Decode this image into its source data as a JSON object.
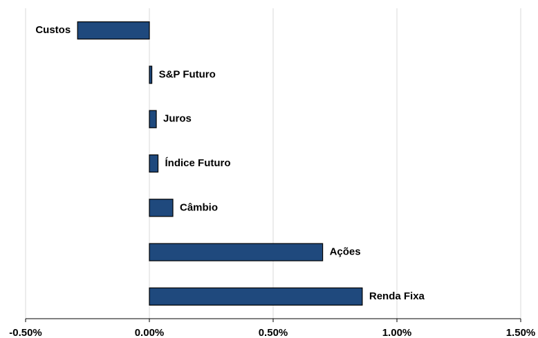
{
  "chart_data": {
    "type": "barh",
    "categories": [
      "Custos",
      "S&P Futuro",
      "Juros",
      "Índice Futuro",
      "Câmbio",
      "Ações",
      "Renda Fixa"
    ],
    "values": [
      -0.29,
      0.01,
      0.028,
      0.035,
      0.095,
      0.7,
      0.86
    ],
    "color": "#1f497d",
    "xlim": [
      -0.5,
      1.5
    ],
    "xticks": [
      {
        "value": -0.5,
        "label": "-0.50%"
      },
      {
        "value": 0,
        "label": "0.00%"
      },
      {
        "value": 0.5,
        "label": "0.50%"
      },
      {
        "value": 1,
        "label": "1.00%"
      },
      {
        "value": 1.5,
        "label": "1.50%"
      }
    ],
    "grid": true
  }
}
